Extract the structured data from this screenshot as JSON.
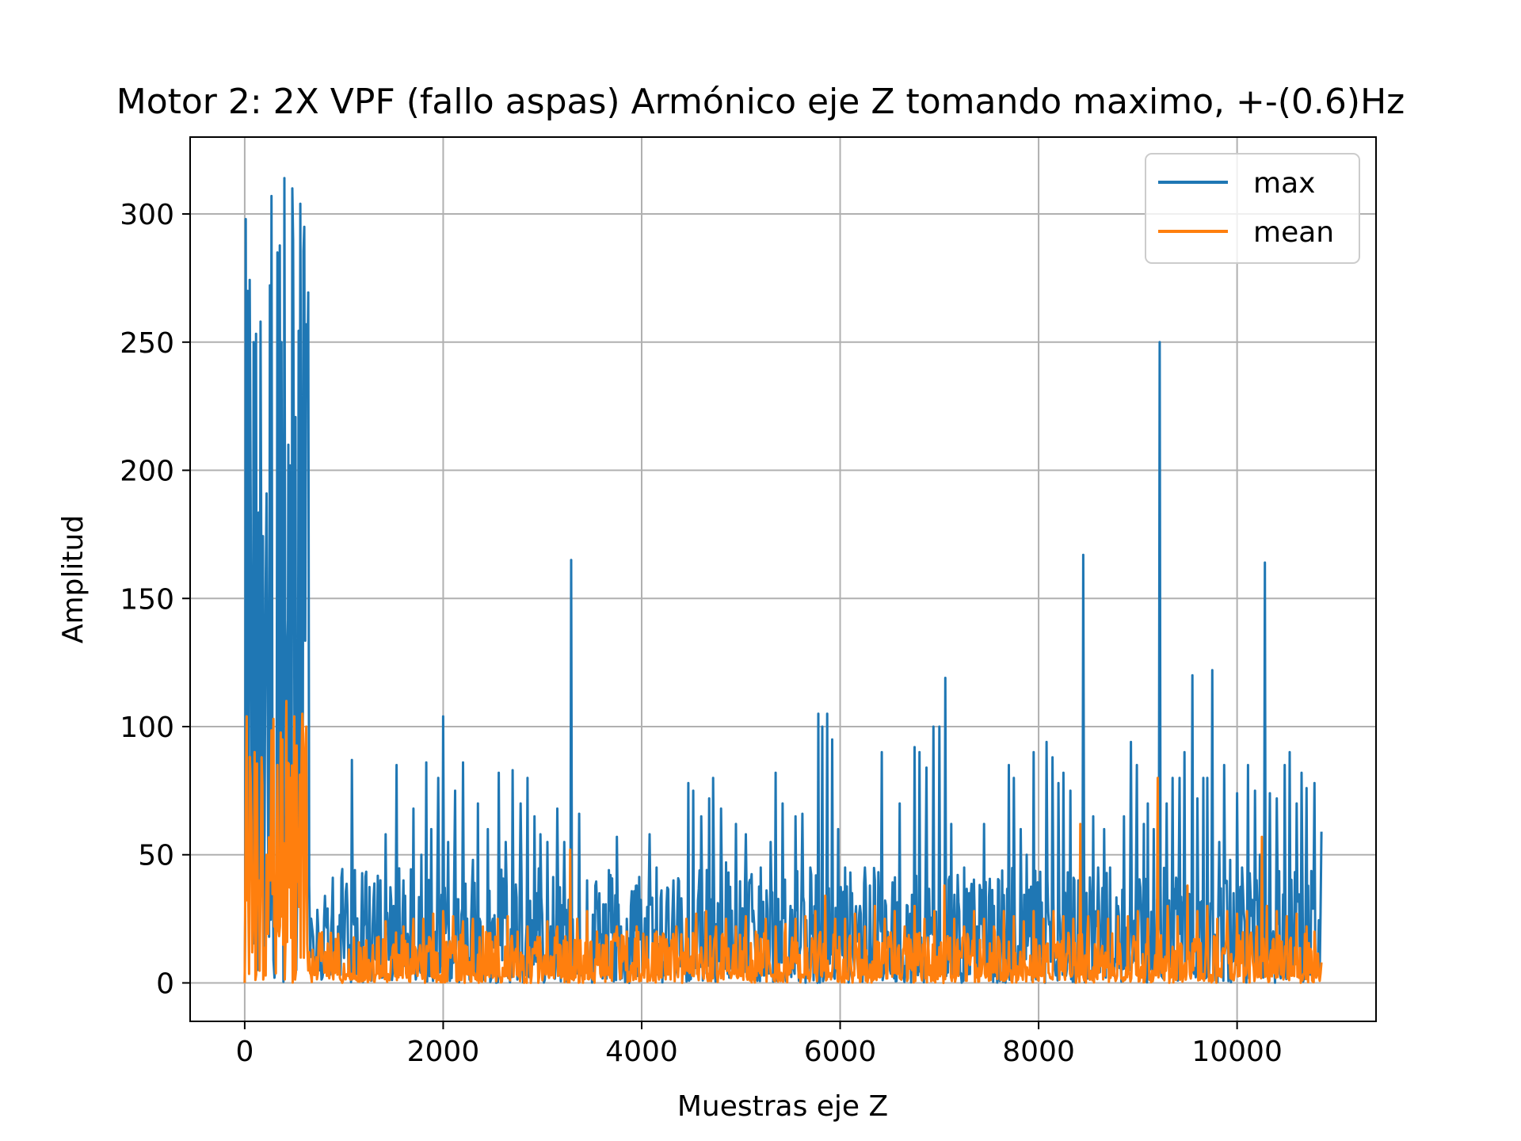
{
  "chart_data": {
    "type": "line",
    "title": "Motor 2: 2X VPF (fallo aspas) Armónico eje Z tomando maximo, +-(0.6)Hz",
    "xlabel": "Muestras eje Z",
    "ylabel": "Amplitud",
    "xlim": [
      -550,
      11400
    ],
    "ylim": [
      -15,
      330
    ],
    "xticks": [
      0,
      2000,
      4000,
      6000,
      8000,
      10000
    ],
    "xtick_labels": [
      "0",
      "2000",
      "4000",
      "6000",
      "8000",
      "10000"
    ],
    "yticks": [
      0,
      50,
      100,
      150,
      200,
      250,
      300
    ],
    "ytick_labels": [
      "0",
      "50",
      "100",
      "150",
      "200",
      "250",
      "300"
    ],
    "grid": true,
    "legend_position": "top-right",
    "x_max": 10850,
    "series": [
      {
        "name": "max",
        "color": "#1f77b4",
        "peaks": [
          [
            0,
            0
          ],
          [
            10,
            298
          ],
          [
            30,
            270
          ],
          [
            60,
            190
          ],
          [
            90,
            250
          ],
          [
            130,
            5
          ],
          [
            160,
            258
          ],
          [
            200,
            60
          ],
          [
            230,
            120
          ],
          [
            270,
            307
          ],
          [
            300,
            2
          ],
          [
            330,
            285
          ],
          [
            370,
            250
          ],
          [
            400,
            314
          ],
          [
            440,
            210
          ],
          [
            480,
            310
          ],
          [
            520,
            5
          ],
          [
            560,
            304
          ],
          [
            600,
            295
          ],
          [
            630,
            230
          ],
          [
            660,
            10
          ],
          [
            690,
            18
          ],
          [
            740,
            22
          ],
          [
            800,
            25
          ],
          [
            870,
            20
          ],
          [
            940,
            22
          ],
          [
            1010,
            24
          ],
          [
            1080,
            87
          ],
          [
            1110,
            44
          ],
          [
            1200,
            22
          ],
          [
            1290,
            23
          ],
          [
            1350,
            25
          ],
          [
            1420,
            58
          ],
          [
            1500,
            30
          ],
          [
            1530,
            85
          ],
          [
            1600,
            40
          ],
          [
            1700,
            68
          ],
          [
            1780,
            50
          ],
          [
            1830,
            86
          ],
          [
            1880,
            60
          ],
          [
            1950,
            80
          ],
          [
            2000,
            104
          ],
          [
            2050,
            55
          ],
          [
            2120,
            75
          ],
          [
            2200,
            86
          ],
          [
            2300,
            48
          ],
          [
            2350,
            70
          ],
          [
            2450,
            60
          ],
          [
            2500,
            25
          ],
          [
            2560,
            82
          ],
          [
            2630,
            55
          ],
          [
            2700,
            83
          ],
          [
            2780,
            70
          ],
          [
            2850,
            80
          ],
          [
            2920,
            65
          ],
          [
            2980,
            58
          ],
          [
            3050,
            55
          ],
          [
            3150,
            68
          ],
          [
            3220,
            55
          ],
          [
            3290,
            165
          ],
          [
            3370,
            66
          ],
          [
            3450,
            40
          ],
          [
            3550,
            30
          ],
          [
            3670,
            44
          ],
          [
            3750,
            57
          ],
          [
            3850,
            25
          ],
          [
            3950,
            38
          ],
          [
            4000,
            20
          ],
          [
            4080,
            58
          ],
          [
            4150,
            45
          ],
          [
            4250,
            30
          ],
          [
            4320,
            40
          ],
          [
            4400,
            33
          ],
          [
            4470,
            78
          ],
          [
            4520,
            75
          ],
          [
            4600,
            65
          ],
          [
            4680,
            72
          ],
          [
            4720,
            80
          ],
          [
            4800,
            68
          ],
          [
            4850,
            47
          ],
          [
            4950,
            62
          ],
          [
            5050,
            58
          ],
          [
            5100,
            39
          ],
          [
            5200,
            45
          ],
          [
            5300,
            55
          ],
          [
            5350,
            82
          ],
          [
            5420,
            70
          ],
          [
            5500,
            30
          ],
          [
            5550,
            65
          ],
          [
            5620,
            66
          ],
          [
            5700,
            45
          ],
          [
            5780,
            105
          ],
          [
            5820,
            100
          ],
          [
            5870,
            105
          ],
          [
            5920,
            95
          ],
          [
            5980,
            60
          ],
          [
            6050,
            45
          ],
          [
            6120,
            35
          ],
          [
            6200,
            30
          ],
          [
            6250,
            45
          ],
          [
            6300,
            38
          ],
          [
            6350,
            40
          ],
          [
            6420,
            90
          ],
          [
            6520,
            25
          ],
          [
            6600,
            70
          ],
          [
            6680,
            30
          ],
          [
            6750,
            92
          ],
          [
            6800,
            90
          ],
          [
            6870,
            84
          ],
          [
            6940,
            100
          ],
          [
            7000,
            100
          ],
          [
            7060,
            119
          ],
          [
            7120,
            62
          ],
          [
            7200,
            28
          ],
          [
            7250,
            45
          ],
          [
            7300,
            35
          ],
          [
            7380,
            22
          ],
          [
            7450,
            62
          ],
          [
            7550,
            30
          ],
          [
            7600,
            40
          ],
          [
            7700,
            85
          ],
          [
            7750,
            80
          ],
          [
            7820,
            60
          ],
          [
            7880,
            50
          ],
          [
            7950,
            90
          ],
          [
            8000,
            35
          ],
          [
            8080,
            94
          ],
          [
            8140,
            88
          ],
          [
            8200,
            78
          ],
          [
            8250,
            82
          ],
          [
            8320,
            75
          ],
          [
            8400,
            40
          ],
          [
            8450,
            167
          ],
          [
            8550,
            65
          ],
          [
            8600,
            45
          ],
          [
            8660,
            60
          ],
          [
            8720,
            45
          ],
          [
            8800,
            30
          ],
          [
            8860,
            65
          ],
          [
            8930,
            94
          ],
          [
            8990,
            85
          ],
          [
            9060,
            62
          ],
          [
            9100,
            70
          ],
          [
            9160,
            60
          ],
          [
            9220,
            250
          ],
          [
            9290,
            70
          ],
          [
            9350,
            80
          ],
          [
            9420,
            80
          ],
          [
            9470,
            90
          ],
          [
            9550,
            120
          ],
          [
            9600,
            72
          ],
          [
            9660,
            80
          ],
          [
            9700,
            80
          ],
          [
            9750,
            122
          ],
          [
            9820,
            55
          ],
          [
            9870,
            85
          ],
          [
            9930,
            48
          ],
          [
            10000,
            74
          ],
          [
            10050,
            45
          ],
          [
            10110,
            85
          ],
          [
            10180,
            75
          ],
          [
            10230,
            50
          ],
          [
            10280,
            164
          ],
          [
            10330,
            74
          ],
          [
            10400,
            72
          ],
          [
            10480,
            85
          ],
          [
            10530,
            90
          ],
          [
            10600,
            70
          ],
          [
            10650,
            82
          ],
          [
            10700,
            76
          ],
          [
            10780,
            78
          ],
          [
            10850,
            59
          ]
        ]
      },
      {
        "name": "mean",
        "color": "#ff7f0e",
        "peaks": [
          [
            0,
            0
          ],
          [
            20,
            104
          ],
          [
            60,
            80
          ],
          [
            100,
            90
          ],
          [
            140,
            40
          ],
          [
            170,
            88
          ],
          [
            220,
            50
          ],
          [
            260,
            40
          ],
          [
            290,
            103
          ],
          [
            330,
            85
          ],
          [
            380,
            95
          ],
          [
            420,
            110
          ],
          [
            460,
            80
          ],
          [
            500,
            104
          ],
          [
            540,
            60
          ],
          [
            580,
            105
          ],
          [
            620,
            100
          ],
          [
            650,
            12
          ],
          [
            720,
            10
          ],
          [
            820,
            10
          ],
          [
            950,
            12
          ],
          [
            1050,
            13
          ],
          [
            1200,
            14
          ],
          [
            1350,
            18
          ],
          [
            1420,
            24
          ],
          [
            1500,
            15
          ],
          [
            1600,
            22
          ],
          [
            1700,
            25
          ],
          [
            1800,
            25
          ],
          [
            1900,
            27
          ],
          [
            2000,
            28
          ],
          [
            2100,
            26
          ],
          [
            2200,
            24
          ],
          [
            2300,
            25
          ],
          [
            2400,
            22
          ],
          [
            2550,
            25
          ],
          [
            2650,
            26
          ],
          [
            2750,
            20
          ],
          [
            2850,
            22
          ],
          [
            2950,
            18
          ],
          [
            3050,
            24
          ],
          [
            3150,
            22
          ],
          [
            3280,
            52
          ],
          [
            3350,
            25
          ],
          [
            3450,
            28
          ],
          [
            3550,
            20
          ],
          [
            3650,
            18
          ],
          [
            3750,
            22
          ],
          [
            3850,
            20
          ],
          [
            3950,
            22
          ],
          [
            4050,
            18
          ],
          [
            4150,
            20
          ],
          [
            4250,
            17
          ],
          [
            4350,
            22
          ],
          [
            4450,
            25
          ],
          [
            4550,
            27
          ],
          [
            4650,
            28
          ],
          [
            4750,
            22
          ],
          [
            4850,
            25
          ],
          [
            4950,
            22
          ],
          [
            5050,
            26
          ],
          [
            5150,
            20
          ],
          [
            5250,
            25
          ],
          [
            5350,
            22
          ],
          [
            5450,
            23
          ],
          [
            5550,
            25
          ],
          [
            5650,
            26
          ],
          [
            5750,
            28
          ],
          [
            5850,
            34
          ],
          [
            5950,
            25
          ],
          [
            6050,
            25
          ],
          [
            6150,
            27
          ],
          [
            6250,
            22
          ],
          [
            6350,
            30
          ],
          [
            6450,
            25
          ],
          [
            6550,
            28
          ],
          [
            6650,
            22
          ],
          [
            6750,
            30
          ],
          [
            6850,
            25
          ],
          [
            6950,
            28
          ],
          [
            7050,
            38
          ],
          [
            7150,
            25
          ],
          [
            7250,
            22
          ],
          [
            7350,
            28
          ],
          [
            7450,
            25
          ],
          [
            7550,
            22
          ],
          [
            7650,
            28
          ],
          [
            7750,
            26
          ],
          [
            7850,
            24
          ],
          [
            7950,
            28
          ],
          [
            8050,
            25
          ],
          [
            8150,
            28
          ],
          [
            8250,
            26
          ],
          [
            8350,
            25
          ],
          [
            8420,
            62
          ],
          [
            8500,
            26
          ],
          [
            8600,
            28
          ],
          [
            8700,
            25
          ],
          [
            8800,
            26
          ],
          [
            8900,
            26
          ],
          [
            9000,
            28
          ],
          [
            9100,
            25
          ],
          [
            9200,
            80
          ],
          [
            9300,
            30
          ],
          [
            9400,
            26
          ],
          [
            9500,
            38
          ],
          [
            9600,
            28
          ],
          [
            9700,
            30
          ],
          [
            9800,
            25
          ],
          [
            9900,
            28
          ],
          [
            10000,
            27
          ],
          [
            10100,
            28
          ],
          [
            10200,
            22
          ],
          [
            10250,
            57
          ],
          [
            10300,
            30
          ],
          [
            10400,
            28
          ],
          [
            10500,
            26
          ],
          [
            10600,
            27
          ],
          [
            10700,
            22
          ],
          [
            10780,
            20
          ],
          [
            10850,
            8
          ]
        ]
      }
    ]
  }
}
